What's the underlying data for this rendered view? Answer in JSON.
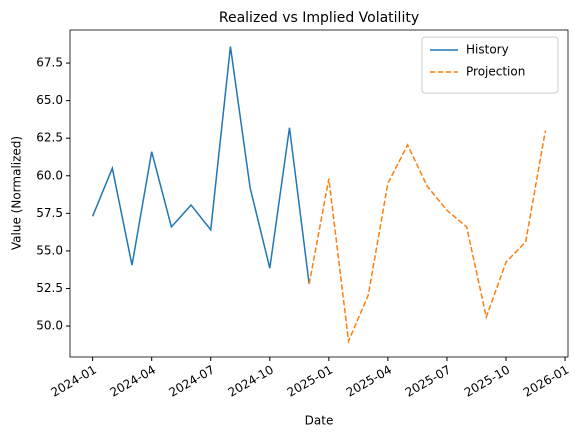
{
  "chart_data": {
    "type": "line",
    "title": "Realized vs Implied Volatility",
    "xlabel": "Date",
    "ylabel": "Value (Normalized)",
    "x": [
      "2024-01",
      "2024-02",
      "2024-03",
      "2024-04",
      "2024-05",
      "2024-06",
      "2024-07",
      "2024-08",
      "2024-09",
      "2024-10",
      "2024-11",
      "2024-12",
      "2025-01",
      "2025-02",
      "2025-03",
      "2025-04",
      "2025-05",
      "2025-06",
      "2025-07",
      "2025-08",
      "2025-09",
      "2025-10",
      "2025-11",
      "2025-12"
    ],
    "series": [
      {
        "name": "History",
        "color": "#1f77b4",
        "dash": "solid",
        "values": [
          57.3,
          60.5,
          54.05,
          61.6,
          56.6,
          58.05,
          56.4,
          68.6,
          59.2,
          53.85,
          63.2,
          52.8,
          null,
          null,
          null,
          null,
          null,
          null,
          null,
          null,
          null,
          null,
          null,
          null
        ]
      },
      {
        "name": "Projection",
        "color": "#ff7f0e",
        "dash": "dashed",
        "values": [
          null,
          null,
          null,
          null,
          null,
          null,
          null,
          null,
          null,
          null,
          null,
          52.8,
          59.8,
          49.0,
          52.05,
          59.5,
          62.05,
          59.3,
          57.7,
          56.6,
          50.6,
          54.25,
          55.6,
          63.0
        ]
      }
    ],
    "ylim": [
      47.94,
      69.7
    ],
    "yticks": [
      {
        "value": 50,
        "label": "50.0"
      },
      {
        "value": 52.5,
        "label": "52.5"
      },
      {
        "value": 55,
        "label": "55.0"
      },
      {
        "value": 57.5,
        "label": "57.5"
      },
      {
        "value": 60,
        "label": "60.0"
      },
      {
        "value": 62.5,
        "label": "62.5"
      },
      {
        "value": 65,
        "label": "65.0"
      },
      {
        "value": 67.5,
        "label": "67.5"
      }
    ],
    "xticks": [
      "2024-01",
      "2024-04",
      "2024-07",
      "2024-10",
      "2025-01",
      "2025-04",
      "2025-07",
      "2025-10",
      "2026-01"
    ],
    "legend": "upper right"
  }
}
